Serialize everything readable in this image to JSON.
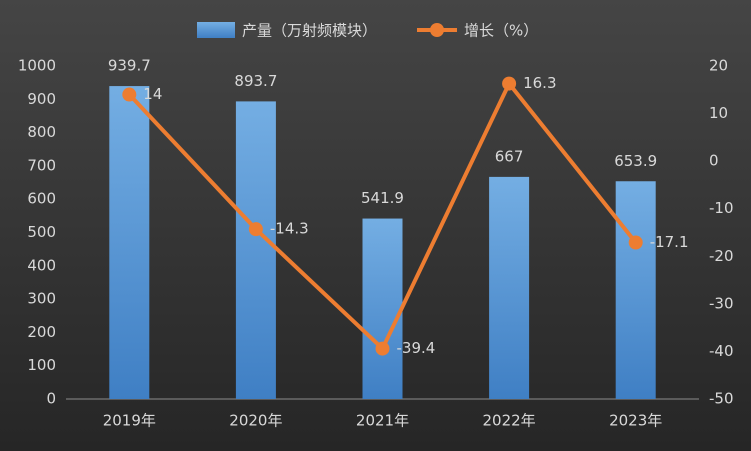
{
  "chart_data": {
    "type": "bar",
    "categories": [
      "2019年",
      "2020年",
      "2021年",
      "2022年",
      "2023年"
    ],
    "series": [
      {
        "name": "产量（万射频模块）",
        "type": "bar",
        "color": "#5b9bd5",
        "values": [
          939.7,
          893.7,
          541.9,
          667,
          653.9
        ]
      },
      {
        "name": "增长（%）",
        "type": "line",
        "axis": "y2",
        "color": "#ed7d31",
        "values": [
          14,
          -14.3,
          -39.4,
          16.3,
          -17.1
        ]
      }
    ],
    "ylim": [
      0,
      1000
    ],
    "yticks": [
      0,
      100,
      200,
      300,
      400,
      500,
      600,
      700,
      800,
      900,
      1000
    ],
    "y2lim": [
      -50,
      20
    ],
    "y2ticks": [
      -50,
      -40,
      -30,
      -20,
      -10,
      0,
      10,
      20
    ],
    "grid": false
  }
}
